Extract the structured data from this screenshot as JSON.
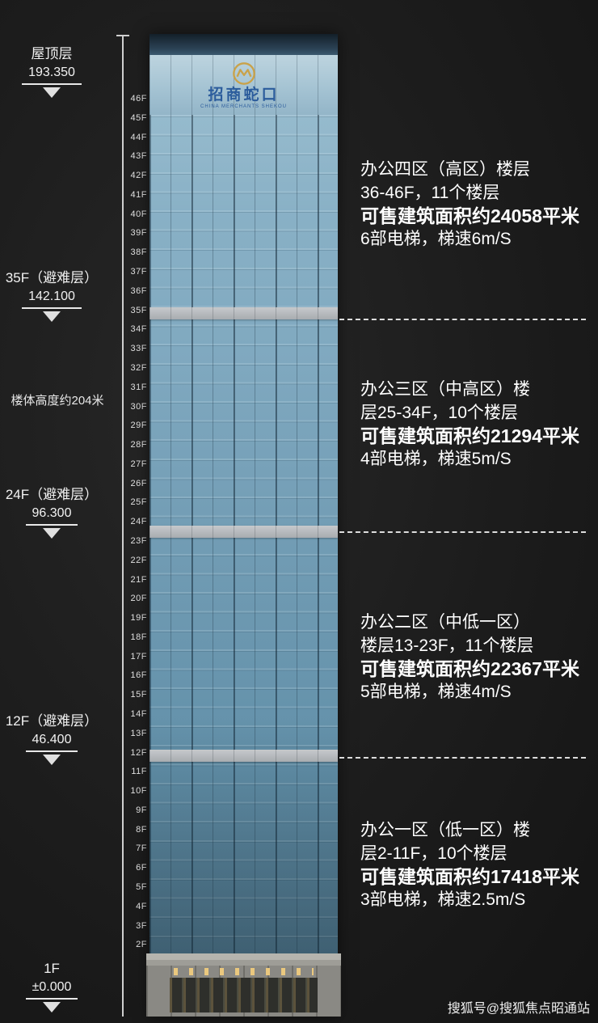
{
  "page": {
    "background": "#1c1c1c",
    "watermark": "搜狐号@搜狐焦点昭通站"
  },
  "building": {
    "logo_text": "招商蛇口",
    "logo_subtext": "CHINA MERCHANTS SHEKOU",
    "logo_blue": "#2b5c9c",
    "logo_gold": "#c9a24a",
    "glass_blue": "#7fa8bf"
  },
  "left_markers": [
    {
      "label": "屋顶层",
      "value": "193.350"
    },
    {
      "label": "35F（避难层）",
      "value": "142.100"
    },
    {
      "label": "24F（避难层）",
      "value": "96.300"
    },
    {
      "label": "12F（避难层）",
      "value": "46.400"
    },
    {
      "label": "1F",
      "value": "±0.000"
    }
  ],
  "height_note": "楼体高度约204米",
  "floors": [
    "46F",
    "45F",
    "44F",
    "43F",
    "42F",
    "41F",
    "40F",
    "39F",
    "38F",
    "37F",
    "36F",
    "35F",
    "34F",
    "33F",
    "32F",
    "31F",
    "30F",
    "29F",
    "28F",
    "27F",
    "26F",
    "25F",
    "24F",
    "23F",
    "22F",
    "21F",
    "20F",
    "19F",
    "18F",
    "17F",
    "16F",
    "15F",
    "14F",
    "13F",
    "12F",
    "11F",
    "10F",
    "9F",
    "8F",
    "7F",
    "6F",
    "5F",
    "4F",
    "3F",
    "2F"
  ],
  "zones": [
    {
      "line1": "办公四区（高区）楼层",
      "line2": "36-46F，11个楼层",
      "line3": "可售建筑面积约24058平米",
      "line4": "6部电梯，梯速6m/S"
    },
    {
      "line1": "办公三区（中高区）楼",
      "line2": "层25-34F，10个楼层",
      "line3": "可售建筑面积约21294平米",
      "line4": "4部电梯，梯速5m/S"
    },
    {
      "line1": "办公二区（中低一区）",
      "line2": "楼层13-23F，11个楼层",
      "line3": "可售建筑面积约22367平米",
      "line4": "5部电梯，梯速4m/S"
    },
    {
      "line1": "办公一区（低一区）楼",
      "line2": "层2-11F，10个楼层",
      "line3": "可售建筑面积约17418平米",
      "line4": "3部电梯，梯速2.5m/S"
    }
  ]
}
